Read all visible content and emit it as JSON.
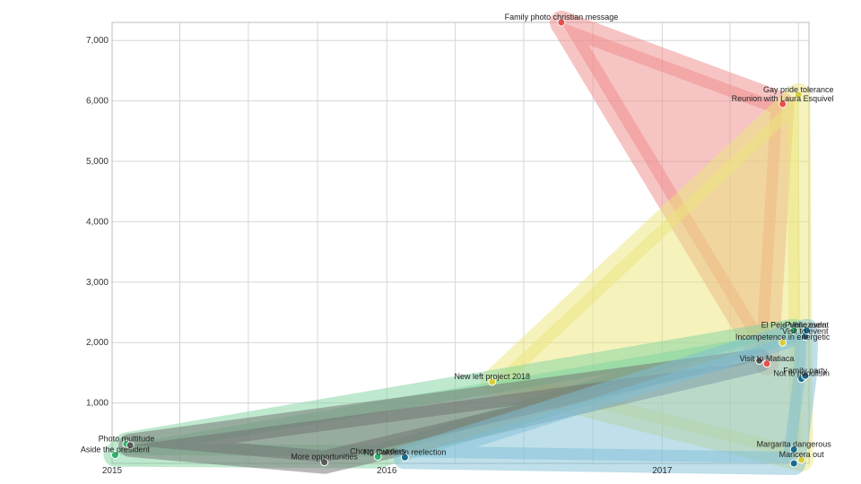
{
  "chart_data": {
    "type": "scatter",
    "title": "",
    "xlabel": "",
    "ylabel": "",
    "grid": true,
    "x_axis": {
      "min": "2015-01-01",
      "max": "2017-07-15",
      "tick_labels": [
        "2015",
        "2016",
        "2017"
      ],
      "tick_dates": [
        "2015-01-01",
        "2016-01-01",
        "2017-01-01"
      ]
    },
    "y_axis": {
      "min": 0,
      "max": 7300,
      "tick_values": [
        0,
        1000,
        2000,
        3000,
        4000,
        5000,
        6000,
        7000
      ],
      "tick_labels": [
        "",
        "1,000",
        "2,000",
        "3,000",
        "4,000",
        "5,000",
        "6,000",
        "7,000"
      ]
    },
    "series": [
      {
        "color": "#e8504a",
        "hull_color": "#f08a8a",
        "points": [
          {
            "x": "2016-08-20",
            "y": 7300,
            "label": "Family photo christian message"
          },
          {
            "x": "2017-06-10",
            "y": 5950,
            "label": "Reunion with Laura Esquivel"
          },
          {
            "x": "2017-05-20",
            "y": 1650,
            "label": "Visit to Matiaca"
          }
        ]
      },
      {
        "color": "#d8cc3a",
        "hull_color": "#ece67a",
        "points": [
          {
            "x": "2016-05-20",
            "y": 1350,
            "label": "New left project 2018"
          },
          {
            "x": "2017-07-01",
            "y": 6100,
            "label": "Gay pride tolerance"
          },
          {
            "x": "2017-06-10",
            "y": 2000,
            "label": "Incompetence in energetic"
          },
          {
            "x": "2017-07-05",
            "y": 60,
            "label": "Mancera out"
          }
        ]
      },
      {
        "color": "#2bb36a",
        "hull_color": "#7fd49f",
        "points": [
          {
            "x": "2015-01-20",
            "y": 320,
            "label": "Photo multitude"
          },
          {
            "x": "2015-01-05",
            "y": 140,
            "label": "Aside the president"
          },
          {
            "x": "2015-12-20",
            "y": 110,
            "label": "Chong murders"
          },
          {
            "x": "2017-06-25",
            "y": 2200,
            "label": "El Peje Venezuela"
          }
        ]
      },
      {
        "color": "#5a5a5a",
        "hull_color": "#6f6f6f",
        "points": [
          {
            "x": "2015-01-25",
            "y": 300,
            "label": ""
          },
          {
            "x": "2015-10-10",
            "y": 20,
            "label": "More opportunities"
          },
          {
            "x": "2017-05-10",
            "y": 1700,
            "label": ""
          }
        ]
      },
      {
        "color": "#1a6c8a",
        "hull_color": "#7fbfd6",
        "points": [
          {
            "x": "2016-01-25",
            "y": 100,
            "label": "No Calderón reelection"
          },
          {
            "x": "2017-07-05",
            "y": 1400,
            "label": "Not to populism"
          },
          {
            "x": "2017-07-10",
            "y": 1450,
            "label": "Family party"
          },
          {
            "x": "2017-07-10",
            "y": 2100,
            "label": "Visit to event"
          },
          {
            "x": "2017-07-12",
            "y": 2200,
            "label": "Public event"
          },
          {
            "x": "2017-06-25",
            "y": 230,
            "label": "Margarita dangerous"
          },
          {
            "x": "2017-06-25",
            "y": 0,
            "label": ""
          }
        ]
      }
    ]
  }
}
